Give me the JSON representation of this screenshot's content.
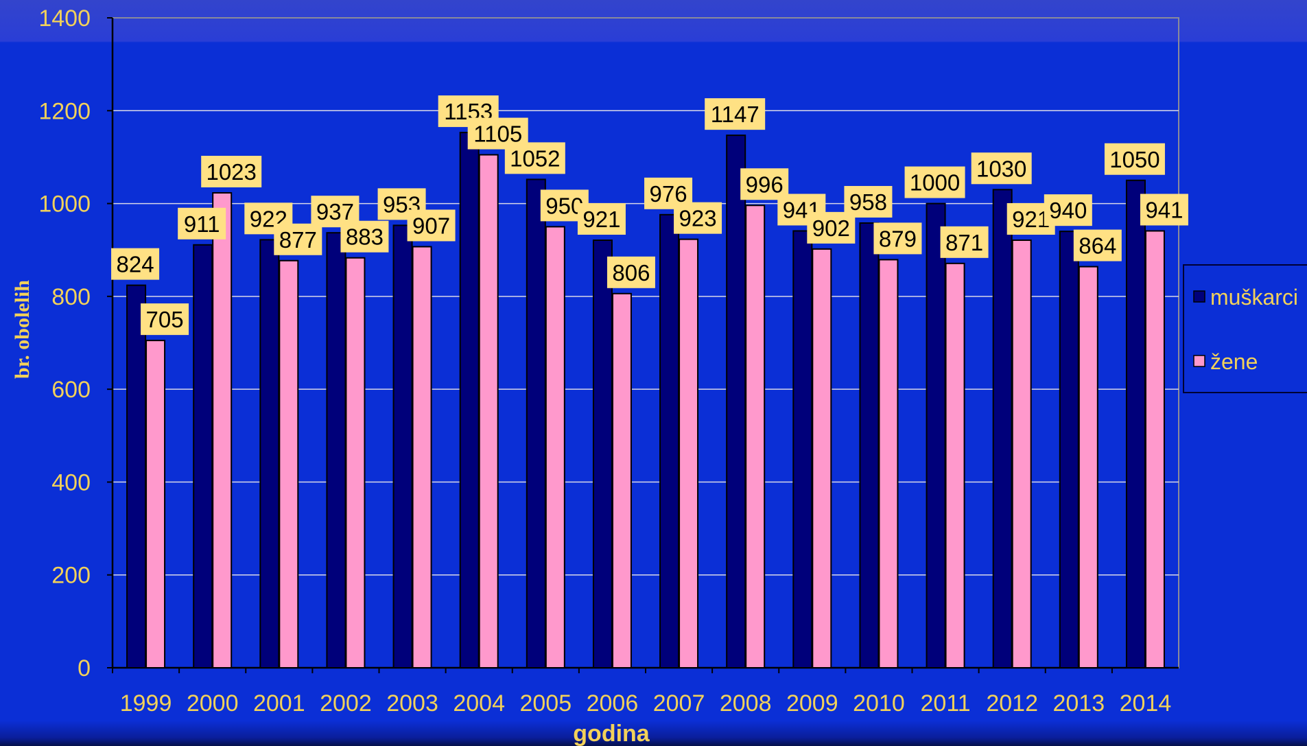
{
  "chart_data": {
    "type": "bar",
    "categories": [
      "1999",
      "2000",
      "2001",
      "2002",
      "2003",
      "2004",
      "2005",
      "2006",
      "2007",
      "2008",
      "2009",
      "2010",
      "2011",
      "2012",
      "2013",
      "2014"
    ],
    "series": [
      {
        "name": "muškarci",
        "color": "#00007a",
        "values": [
          824,
          911,
          922,
          937,
          953,
          1153,
          1052,
          921,
          976,
          1147,
          941,
          958,
          1000,
          1030,
          940,
          1050
        ]
      },
      {
        "name": "žene",
        "color": "#ff99cc",
        "values": [
          705,
          1023,
          877,
          883,
          907,
          1105,
          950,
          806,
          923,
          996,
          902,
          879,
          871,
          921,
          864,
          941
        ]
      }
    ],
    "title": "",
    "xlabel": "godina",
    "ylabel": "br. obolelih",
    "ylim": [
      0,
      1400
    ],
    "yticks": [
      "0",
      "200",
      "400",
      "600",
      "800",
      "1000",
      "1200",
      "1400"
    ],
    "grid": true,
    "legend": "right"
  }
}
